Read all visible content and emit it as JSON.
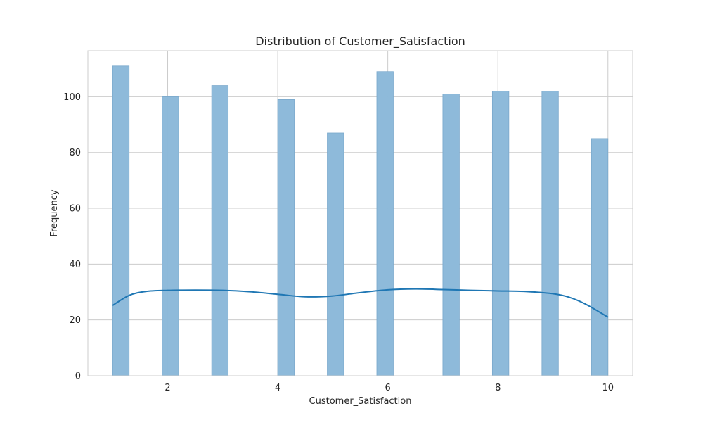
{
  "chart_data": {
    "type": "bar",
    "title": "Distribution of Customer_Satisfaction",
    "xlabel": "Customer_Satisfaction",
    "ylabel": "Frequency",
    "xlim": [
      0.55,
      10.45
    ],
    "ylim": [
      0,
      116.5
    ],
    "x_ticks": [
      2,
      4,
      6,
      8,
      10
    ],
    "y_ticks": [
      0,
      20,
      40,
      60,
      80,
      100
    ],
    "grid": true,
    "bar_color": "#8cb9d9",
    "bar_edge_color": "#7aa9cc",
    "kde_color": "#1f77b4",
    "bars": [
      {
        "x0": 1.0,
        "x1": 1.3,
        "value": 111
      },
      {
        "x0": 1.9,
        "x1": 2.2,
        "value": 100
      },
      {
        "x0": 2.8,
        "x1": 3.1,
        "value": 104
      },
      {
        "x0": 4.0,
        "x1": 4.3,
        "value": 99
      },
      {
        "x0": 4.9,
        "x1": 5.2,
        "value": 87
      },
      {
        "x0": 5.8,
        "x1": 6.1,
        "value": 109
      },
      {
        "x0": 7.0,
        "x1": 7.3,
        "value": 101
      },
      {
        "x0": 7.9,
        "x1": 8.2,
        "value": 102
      },
      {
        "x0": 8.8,
        "x1": 9.1,
        "value": 102
      },
      {
        "x0": 9.7,
        "x1": 10.0,
        "value": 85
      }
    ],
    "kde": {
      "x": [
        1.0,
        1.3,
        1.6,
        2.0,
        2.5,
        3.0,
        3.5,
        4.0,
        4.5,
        5.0,
        5.5,
        6.0,
        6.5,
        7.0,
        7.5,
        8.0,
        8.5,
        9.0,
        9.3,
        9.6,
        10.0
      ],
      "y": [
        25.2,
        28.8,
        30.2,
        30.6,
        30.7,
        30.6,
        30.1,
        29.2,
        28.3,
        28.6,
        29.8,
        30.8,
        31.1,
        30.9,
        30.6,
        30.4,
        30.2,
        29.4,
        28.1,
        25.6,
        21.0
      ]
    }
  }
}
